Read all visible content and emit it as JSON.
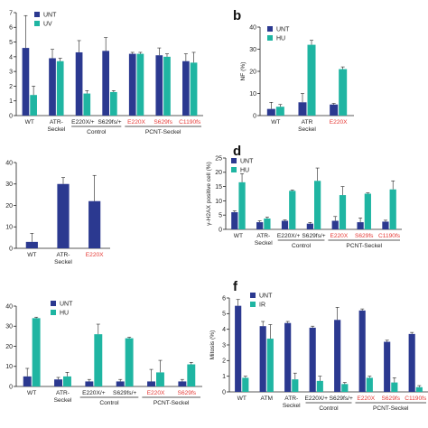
{
  "colors": {
    "unt": "#2b3990",
    "teal": "#1fb5a2",
    "red": "#e53935",
    "axis": "#222222"
  },
  "chart_data": [
    {
      "id": "a",
      "type": "bar",
      "panel_letter": "",
      "ylabel": "",
      "ylim": [
        0,
        7
      ],
      "yticks": [
        0,
        1,
        2,
        3,
        4,
        5,
        6,
        7
      ],
      "categories": [
        "WT",
        "ATR-\nSeckel",
        "E220X/+",
        "S629fs/+",
        "E220X",
        "S629fs",
        "C1190fs"
      ],
      "red_categories": [
        4,
        5,
        6
      ],
      "series": [
        {
          "name": "UNT",
          "values": [
            4.6,
            3.9,
            4.3,
            4.4,
            4.2,
            4.1,
            3.7
          ],
          "errors": [
            2.2,
            0.6,
            0.8,
            0.9,
            0.1,
            0.5,
            0.5
          ]
        },
        {
          "name": "UV",
          "values": [
            1.4,
            3.7,
            1.5,
            1.6,
            4.2,
            4.0,
            3.6
          ],
          "errors": [
            0.6,
            0.2,
            0.2,
            0.1,
            0.1,
            0.2,
            0.7
          ]
        }
      ],
      "groups": [
        {
          "label": "Control",
          "from": 2,
          "to": 3
        },
        {
          "label": "PCNT-Seckel",
          "from": 4,
          "to": 6
        }
      ]
    },
    {
      "id": "b",
      "type": "bar",
      "panel_letter": "b",
      "ylabel": "NF (%)",
      "ylim": [
        0,
        40
      ],
      "yticks": [
        0,
        10,
        20,
        30,
        40
      ],
      "categories": [
        "WT",
        "ATR\nSeckel",
        "E220X"
      ],
      "red_categories": [
        2
      ],
      "series": [
        {
          "name": "UNT",
          "values": [
            3,
            6,
            5
          ],
          "errors": [
            3,
            4,
            0.5
          ]
        },
        {
          "name": "HU",
          "values": [
            4,
            32,
            21
          ],
          "errors": [
            1,
            2,
            1
          ]
        }
      ],
      "groups": []
    },
    {
      "id": "c",
      "type": "bar",
      "panel_letter": "",
      "ylabel": "",
      "ylim": [
        0,
        40
      ],
      "yticks": [
        0,
        10,
        20,
        30,
        40
      ],
      "categories": [
        "WT",
        "ATR-\nSeckel",
        "E220X"
      ],
      "red_categories": [
        2
      ],
      "series": [
        {
          "name": "",
          "values": [
            3,
            30,
            22
          ],
          "errors": [
            4,
            3,
            12
          ]
        }
      ],
      "groups": []
    },
    {
      "id": "d",
      "type": "bar",
      "panel_letter": "d",
      "ylabel": "γ-H2AX positive cell (%)",
      "ylim": [
        0,
        25
      ],
      "yticks": [
        0,
        5,
        10,
        15,
        20,
        25
      ],
      "categories": [
        "WT",
        "ATR-\nSeckel",
        "E220X/+",
        "S629fs/+",
        "E220X",
        "S629fs",
        "C1190fs"
      ],
      "red_categories": [
        4,
        5,
        6
      ],
      "series": [
        {
          "name": "UNT",
          "values": [
            6,
            2.5,
            3,
            2,
            3,
            2.5,
            2.7
          ],
          "errors": [
            0.5,
            0.5,
            0.3,
            0.4,
            1.5,
            1.5,
            0.5
          ]
        },
        {
          "name": "HU",
          "values": [
            16.5,
            3.8,
            13.5,
            17,
            12,
            12.5,
            14
          ],
          "errors": [
            3,
            0.5,
            0.3,
            4.5,
            3,
            0.3,
            3
          ]
        }
      ],
      "groups": [
        {
          "label": "Control",
          "from": 2,
          "to": 3
        },
        {
          "label": "PCNT-Seckel",
          "from": 4,
          "to": 6
        }
      ]
    },
    {
      "id": "e",
      "type": "bar",
      "panel_letter": "",
      "ylabel": "",
      "ylim": [
        0,
        40
      ],
      "yticks": [
        0,
        10,
        20,
        30,
        40
      ],
      "categories": [
        "WT",
        "ATR-\nSeckel",
        "E220X/+",
        "S629fs/+",
        "E220X",
        "S629fs"
      ],
      "red_categories": [
        4,
        5
      ],
      "series": [
        {
          "name": "UNT",
          "values": [
            5,
            3.5,
            2.5,
            2.5,
            2.5,
            2.5
          ],
          "errors": [
            4,
            1,
            1,
            1,
            6,
            1
          ]
        },
        {
          "name": "HU",
          "values": [
            34,
            5,
            26,
            24,
            7,
            11
          ],
          "errors": [
            0.5,
            2,
            5,
            0.5,
            6,
            1
          ]
        }
      ],
      "groups": [
        {
          "label": "Control",
          "from": 2,
          "to": 3
        },
        {
          "label": "PCNT-Seckel",
          "from": 4,
          "to": 5
        }
      ]
    },
    {
      "id": "f",
      "type": "bar",
      "panel_letter": "f",
      "ylabel": "Mitosis (%)",
      "ylim": [
        0,
        6
      ],
      "yticks": [
        0,
        1,
        2,
        3,
        4,
        5,
        6
      ],
      "categories": [
        "WT",
        "ATM",
        "ATR-\nSeckel",
        "E220X/+",
        "S629fs/+",
        "E220X",
        "S629fs",
        "C1190fs"
      ],
      "red_categories": [
        5,
        6,
        7
      ],
      "series": [
        {
          "name": "UNT",
          "values": [
            5.5,
            4.2,
            4.4,
            4.1,
            4.6,
            5.2,
            3.2,
            3.7
          ],
          "errors": [
            0.4,
            0.3,
            0.1,
            0.1,
            0.8,
            0.1,
            0.1,
            0.1
          ]
        },
        {
          "name": "IR",
          "values": [
            0.9,
            3.4,
            0.8,
            0.7,
            0.5,
            0.9,
            0.6,
            0.3
          ],
          "errors": [
            0.1,
            0.9,
            0.4,
            0.3,
            0.1,
            0.1,
            0.3,
            0.1
          ]
        }
      ],
      "groups": [
        {
          "label": "Control",
          "from": 3,
          "to": 4
        },
        {
          "label": "PCNT-Seckel",
          "from": 5,
          "to": 7
        }
      ]
    }
  ]
}
